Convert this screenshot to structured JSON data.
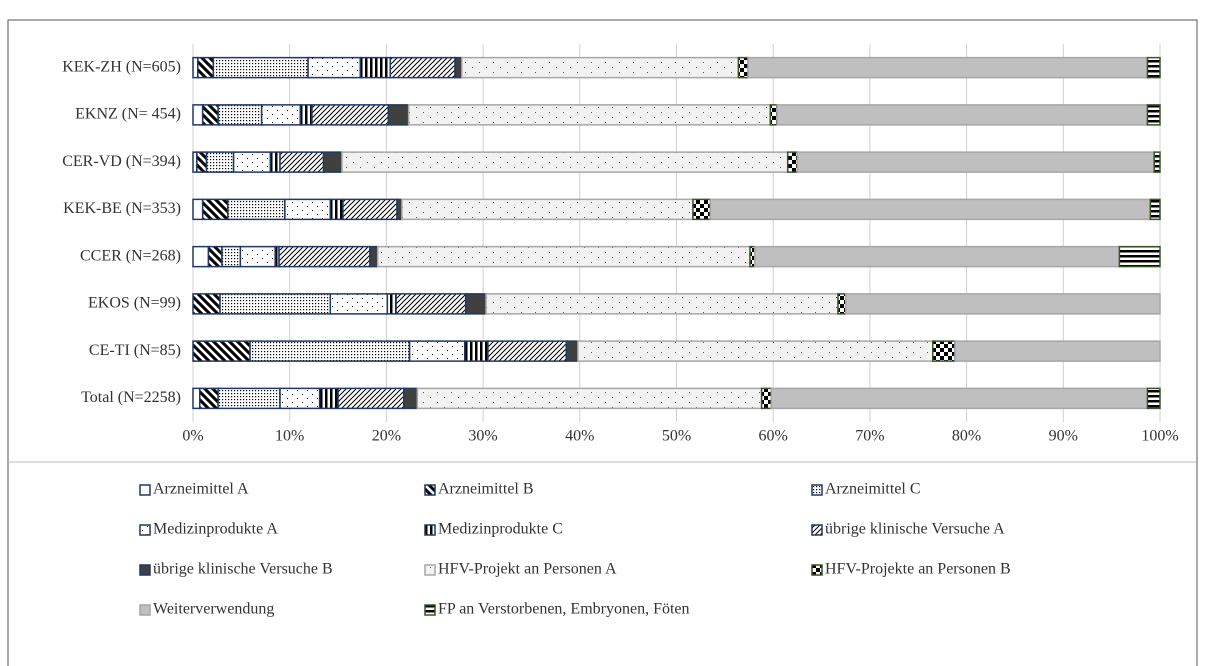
{
  "chart_data": {
    "type": "stacked_bar_horizontal",
    "categories": [
      "KEK-ZH (N=605)",
      "EKNZ (N= 454)",
      "CER-VD (N=394)",
      "KEK-BE (N=353)",
      "CCER (N=268)",
      "EKOS (N=99)",
      "CE-TI (N=85)",
      "Total (N=2258)"
    ],
    "series": [
      {
        "name": "Arzneimittel A",
        "color": "#1f3864",
        "values": [
          0.5,
          1.0,
          0.4,
          1.0,
          1.6,
          0,
          0,
          0.7
        ]
      },
      {
        "name": "Arzneimittel B",
        "color": "#1f3864",
        "values": [
          1.6,
          1.6,
          1.0,
          2.6,
          1.4,
          2.8,
          5.9,
          1.9
        ]
      },
      {
        "name": "Arzneimittel C",
        "color": "#1f3864",
        "values": [
          9.8,
          4.5,
          2.8,
          5.9,
          1.9,
          11.4,
          16.5,
          6.4
        ]
      },
      {
        "name": "Medizinprodukte A",
        "color": "#1f3864",
        "values": [
          5.4,
          4.0,
          3.8,
          4.7,
          3.6,
          5.9,
          5.7,
          4.1
        ]
      },
      {
        "name": "Medizinprodukte C",
        "color": "#1f3864",
        "values": [
          3.1,
          1.2,
          1.0,
          1.3,
          0.4,
          0.9,
          2.4,
          1.9
        ]
      },
      {
        "name": "übrige klinische Versuche A",
        "color": "#1f3864",
        "values": [
          6.7,
          7.9,
          4.5,
          5.6,
          9.4,
          7.2,
          8.1,
          6.8
        ]
      },
      {
        "name": "übrige klinische Versuche B",
        "color": "#1f3864",
        "values": [
          0.7,
          2.1,
          1.9,
          0.5,
          0.8,
          2.1,
          1.2,
          1.4
        ]
      },
      {
        "name": "HFV-Projekt an Personen A",
        "color": "#a6a6a6",
        "values": [
          28.6,
          37.4,
          46.1,
          30.1,
          38.5,
          36.4,
          36.7,
          35.6
        ]
      },
      {
        "name": "HFV-Projekte an Personen B",
        "color": "#375623",
        "values": [
          1.0,
          0.7,
          1.0,
          1.8,
          0.5,
          0.8,
          2.3,
          1.0
        ]
      },
      {
        "name": "Weiterverwendung",
        "color": "#a6a6a6",
        "values": [
          41.3,
          38.3,
          36.9,
          45.5,
          37.7,
          32.5,
          21.2,
          38.9
        ]
      },
      {
        "name": "FP an Verstorbenen, Embryonen, Föten",
        "color": "#375623",
        "values": [
          1.3,
          1.3,
          0.6,
          1.0,
          4.2,
          0,
          0,
          1.3
        ]
      }
    ],
    "xlim": [
      0,
      100
    ],
    "xticks": [
      {
        "value": 0,
        "label": "0%"
      },
      {
        "value": 10,
        "label": "10%"
      },
      {
        "value": 20,
        "label": "20%"
      },
      {
        "value": 30,
        "label": "30%"
      },
      {
        "value": 40,
        "label": "40%"
      },
      {
        "value": 50,
        "label": "50%"
      },
      {
        "value": 60,
        "label": "60%"
      },
      {
        "value": 70,
        "label": "70%"
      },
      {
        "value": 80,
        "label": "80%"
      },
      {
        "value": 90,
        "label": "90%"
      },
      {
        "value": 100,
        "label": "100%"
      }
    ],
    "grid": true,
    "legend": "bottom"
  }
}
